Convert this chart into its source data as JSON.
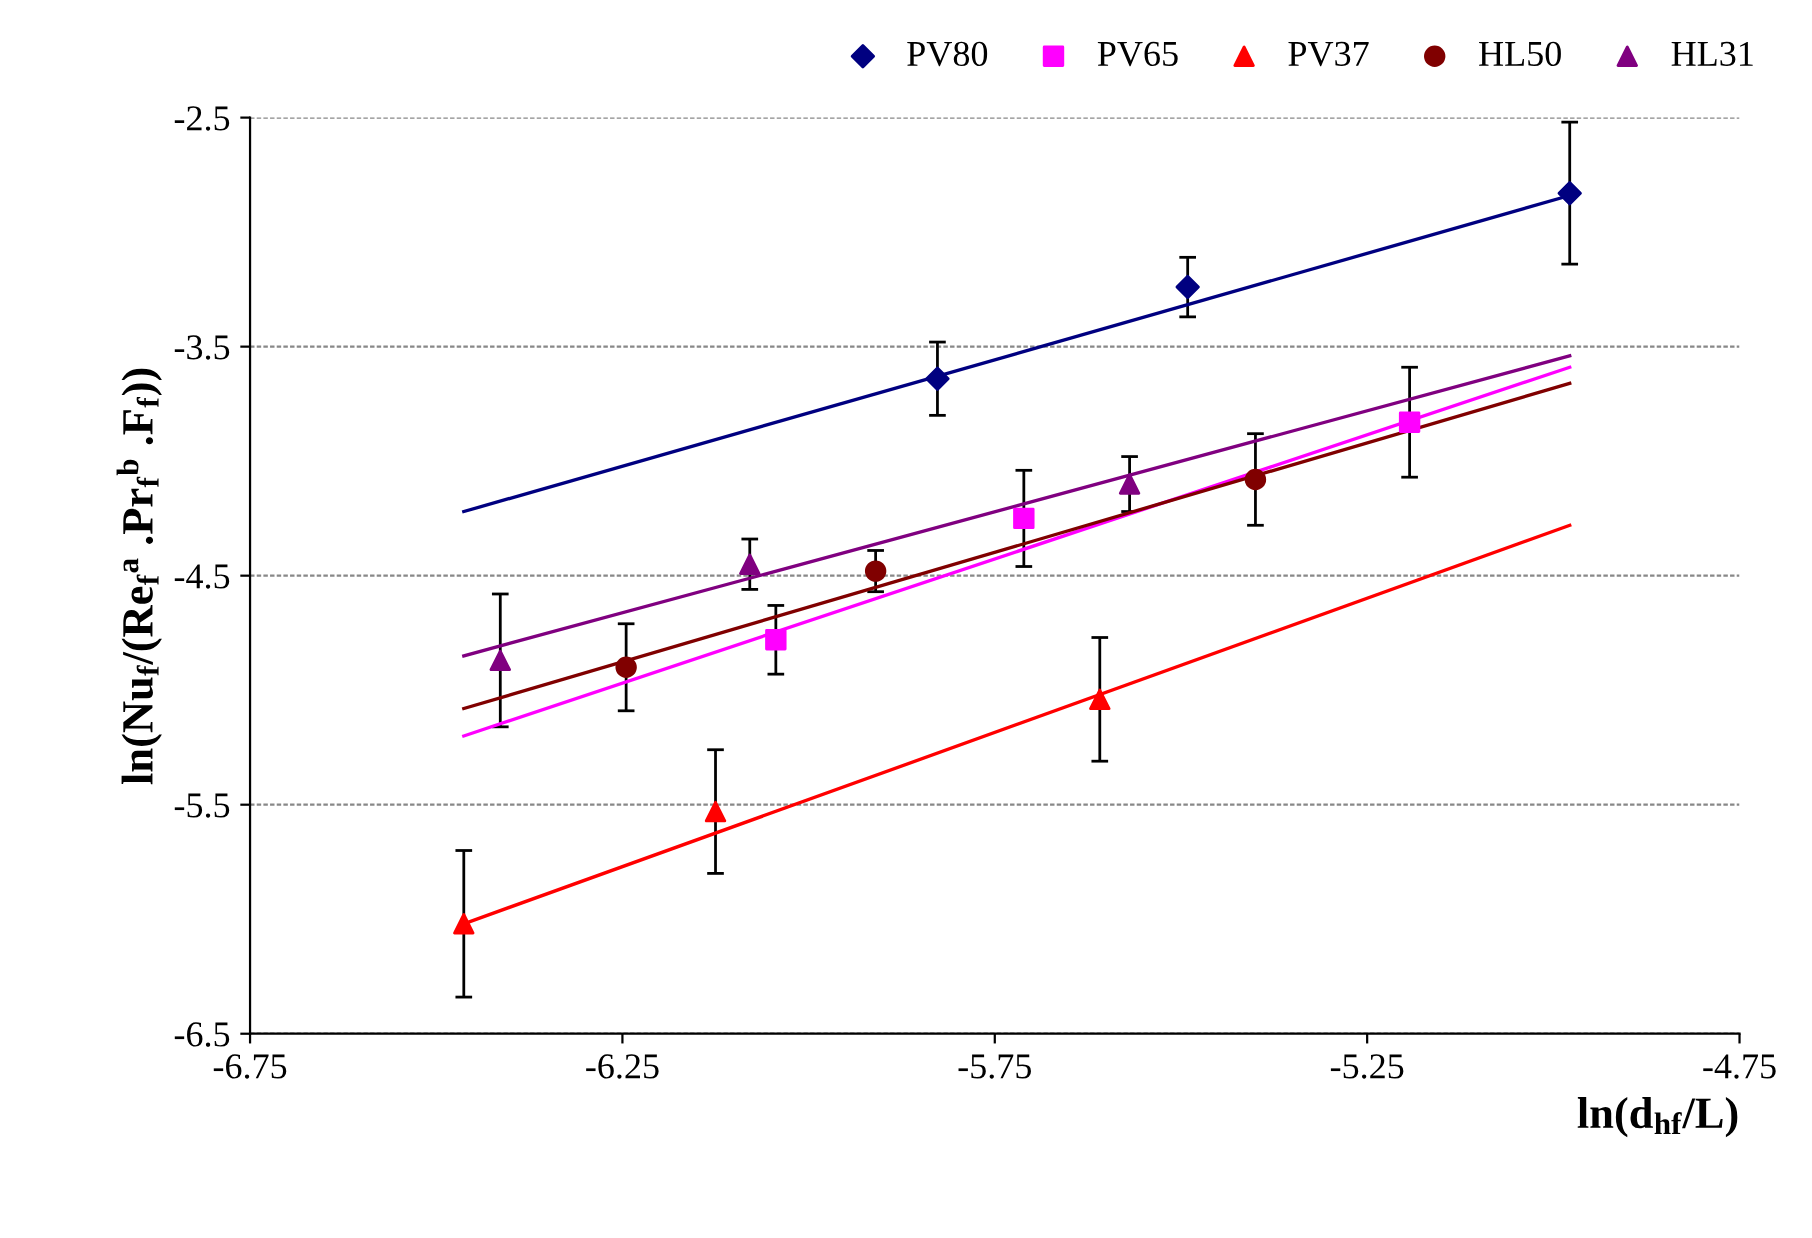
{
  "chart_data": {
    "type": "scatter",
    "xlabel": "ln(d$_{hf}$/L)",
    "ylabel": "ln(Nu$_{f}$/(Re$_{f}$$^{a}$ .Pr$_{f}$$^{b}$ .F$_{f}$))",
    "xlim": [
      -6.75,
      -4.75
    ],
    "xticks": [
      -6.75,
      -6.25,
      -5.75,
      -5.25,
      -4.75
    ],
    "ylim": [
      -6.5,
      -2.5
    ],
    "yticks": [
      -2.5,
      -3.5,
      -4.5,
      -5.5,
      -6.5
    ],
    "grid": "y",
    "legend": "top right",
    "series": [
      {
        "name": "PV80",
        "color": "#000080",
        "marker": "diamond",
        "x": [
          -5.827,
          -5.491,
          -4.978
        ],
        "values": [
          -3.64,
          -3.24,
          -2.83
        ],
        "errors": [
          0.16,
          0.13,
          0.31
        ]
      },
      {
        "name": "PV65",
        "color": "#ff00ff",
        "marker": "square",
        "x": [
          -6.044,
          -5.711,
          -5.193
        ],
        "values": [
          -4.78,
          -4.25,
          -3.83
        ],
        "errors": [
          0.15,
          0.21,
          0.24
        ]
      },
      {
        "name": "PV37",
        "color": "#ff0000",
        "marker": "triangle",
        "x": [
          -6.463,
          -6.125,
          -5.609
        ],
        "values": [
          -6.02,
          -5.53,
          -5.04
        ],
        "errors": [
          0.32,
          0.27,
          0.27
        ]
      },
      {
        "name": "HL50",
        "color": "#800000",
        "marker": "circle",
        "x": [
          -6.245,
          -5.91,
          -5.4
        ],
        "values": [
          -4.9,
          -4.48,
          -4.08
        ],
        "errors": [
          0.19,
          0.09,
          0.2
        ]
      },
      {
        "name": "HL31",
        "color": "#800080",
        "marker": "triangle",
        "x": [
          -6.414,
          -6.079,
          -5.569
        ],
        "values": [
          -4.87,
          -4.45,
          -4.1
        ],
        "errors": [
          0.29,
          0.11,
          0.12
        ]
      },
      {
        "type": "line",
        "color": "#000080",
        "x": [
          -6.463,
          -4.978
        ],
        "values": [
          -4.22,
          -2.84
        ]
      },
      {
        "type": "line",
        "color": "#ff00ff",
        "x": [
          -6.463,
          -4.978
        ],
        "values": [
          -5.2,
          -3.59
        ]
      },
      {
        "type": "line",
        "color": "#ff0000",
        "x": [
          -6.463,
          -4.978
        ],
        "values": [
          -6.02,
          -4.28
        ]
      },
      {
        "type": "line",
        "color": "#800000",
        "x": [
          -6.463,
          -4.978
        ],
        "values": [
          -5.08,
          -3.66
        ]
      },
      {
        "type": "line",
        "color": "#800080",
        "x": [
          -6.463,
          -4.978
        ],
        "values": [
          -4.85,
          -3.54
        ]
      }
    ]
  }
}
